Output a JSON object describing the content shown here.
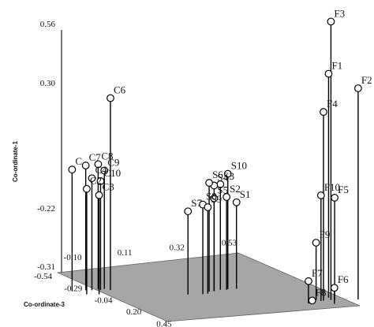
{
  "chart_data": {
    "type": "scatter3d",
    "axes": {
      "coordinate_1": {
        "label": "Co-ordinate-1",
        "ticks": [
          "0.56",
          "0.30",
          "-0.22",
          "-0.31"
        ]
      },
      "coordinate_2": {
        "ticks": [
          "-0.10",
          "0.11",
          "0.32",
          "0.53"
        ]
      },
      "coordinate_3": {
        "label": "Co-ordinate-3",
        "ticks": [
          "-0.54",
          "-0.29",
          "-0.04",
          "0.20",
          "0.45"
        ]
      }
    },
    "points": [
      {
        "label": "C",
        "c1": 0.07,
        "c2": -0.21,
        "c3": -0.2
      },
      {
        "label": "C7",
        "c1": 0.08,
        "c2": -0.16,
        "c3": -0.19
      },
      {
        "label": "C8",
        "c1": 0.08,
        "c2": -0.11,
        "c3": -0.19
      },
      {
        "label": "C9",
        "c1": 0.06,
        "c2": -0.09,
        "c3": -0.18
      },
      {
        "label": "C4",
        "c1": 0.04,
        "c2": -0.14,
        "c3": -0.18
      },
      {
        "label": "C10",
        "c1": 0.03,
        "c2": -0.11,
        "c3": -0.17
      },
      {
        "label": "C2",
        "c1": 0.02,
        "c2": -0.19,
        "c3": -0.12
      },
      {
        "label": "C3",
        "c1": 0.0,
        "c2": -0.15,
        "c3": -0.1
      },
      {
        "label": "C6",
        "c1": 0.29,
        "c2": -0.08,
        "c3": -0.15
      },
      {
        "label": "S1",
        "c1": -0.04,
        "c2": 0.33,
        "c3": 0.05
      },
      {
        "label": "S2",
        "c1": -0.02,
        "c2": 0.29,
        "c3": 0.05
      },
      {
        "label": "S3",
        "c1": 0.02,
        "c2": 0.27,
        "c3": 0.04
      },
      {
        "label": "S4",
        "c1": 0.02,
        "c2": 0.24,
        "c3": 0.05
      },
      {
        "label": "S5",
        "c1": -0.02,
        "c2": 0.24,
        "c3": 0.05
      },
      {
        "label": "S6",
        "c1": 0.03,
        "c2": 0.22,
        "c3": 0.05
      },
      {
        "label": "S7",
        "c1": -0.05,
        "c2": 0.13,
        "c3": 0.06
      },
      {
        "label": "S8",
        "c1": -0.03,
        "c2": 0.18,
        "c3": 0.08
      },
      {
        "label": "S9",
        "c1": -0.04,
        "c2": 0.2,
        "c3": 0.08
      },
      {
        "label": "S10",
        "c1": 0.05,
        "c2": 0.3,
        "c3": 0.04
      },
      {
        "label": "F1",
        "c1": 0.39,
        "c2": 0.55,
        "c3": 0.36
      },
      {
        "label": "F2",
        "c1": 0.35,
        "c2": 0.63,
        "c3": 0.44
      },
      {
        "label": "F3",
        "c1": 0.56,
        "c2": 0.54,
        "c3": 0.4
      },
      {
        "label": "F4",
        "c1": 0.28,
        "c2": 0.51,
        "c3": 0.4
      },
      {
        "label": "F5",
        "c1": 0.01,
        "c2": 0.55,
        "c3": 0.41
      },
      {
        "label": "F10",
        "c1": 0.02,
        "c2": 0.5,
        "c3": 0.4
      },
      {
        "label": "F9",
        "c1": -0.13,
        "c2": 0.49,
        "c3": 0.38
      },
      {
        "label": "F7",
        "c1": -0.24,
        "c2": 0.44,
        "c3": 0.42
      },
      {
        "label": "F6",
        "c1": -0.26,
        "c2": 0.52,
        "c3": 0.47
      },
      {
        "label": "F8",
        "c1": -0.3,
        "c2": 0.45,
        "c3": 0.43
      }
    ]
  }
}
